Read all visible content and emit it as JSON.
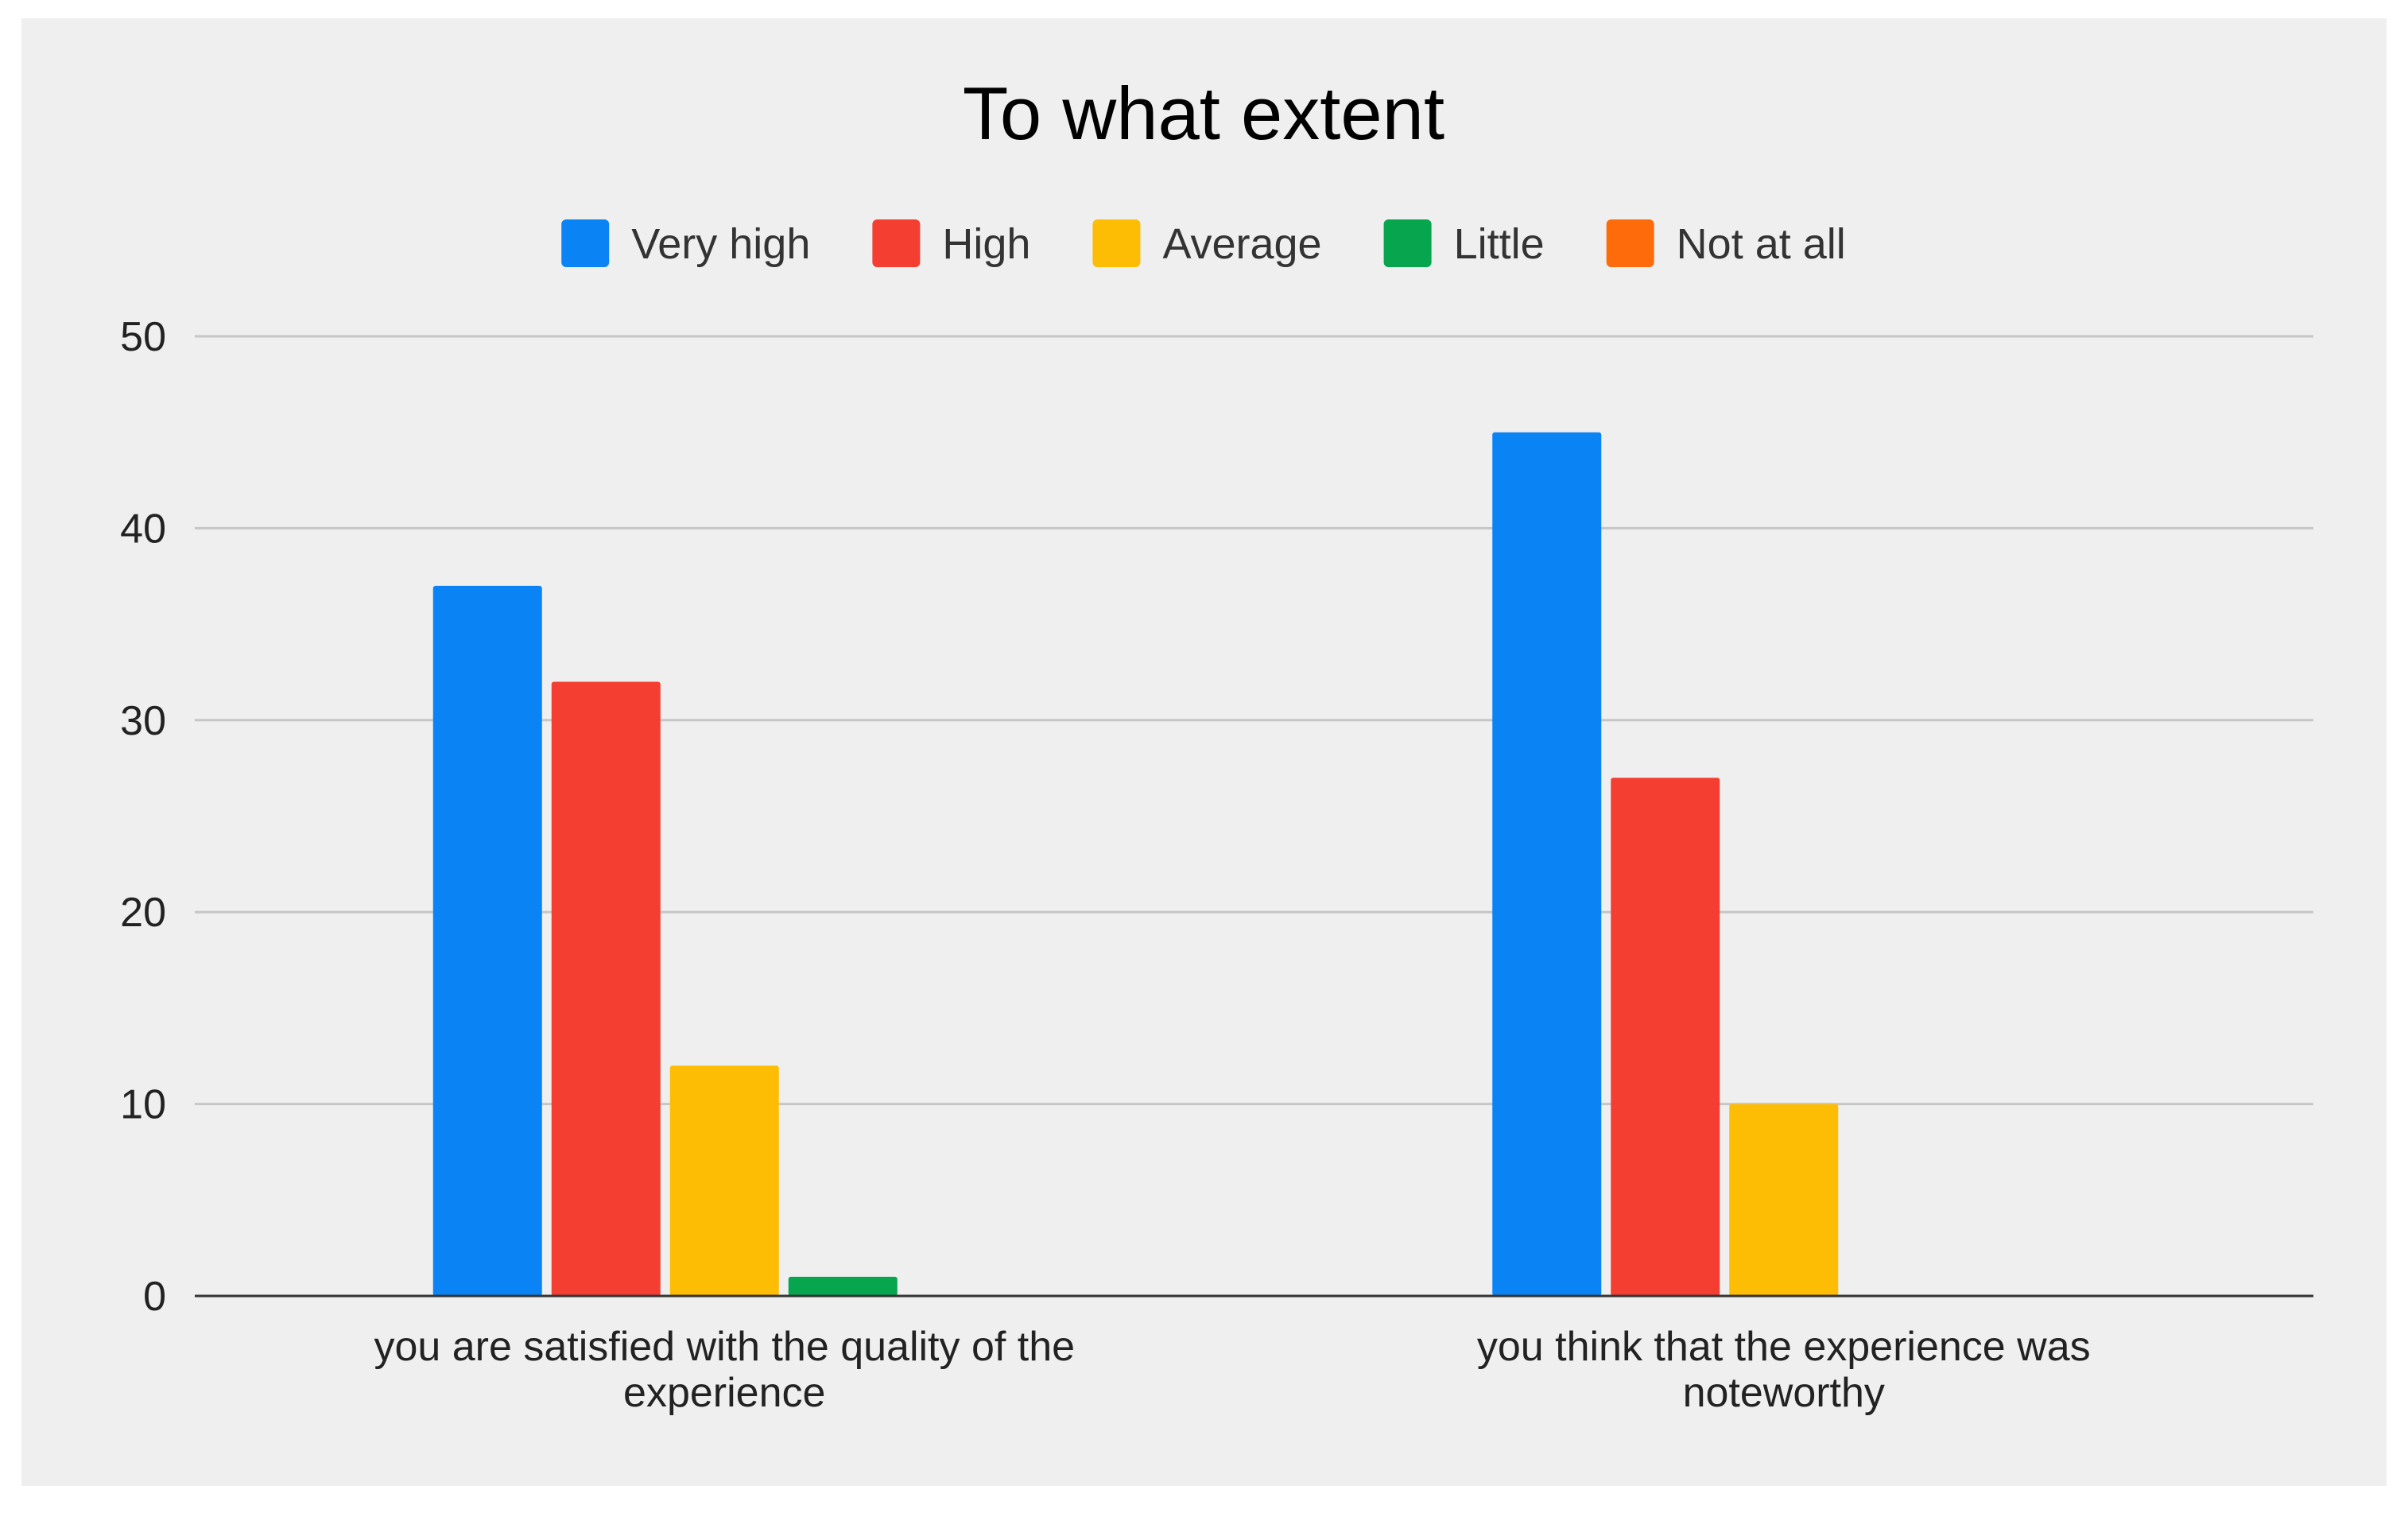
{
  "chart_data": {
    "type": "bar",
    "title": "To what extent",
    "categories": [
      [
        "you are satisfied with the quality of the",
        "experience"
      ],
      [
        "you think that the experience was",
        "noteworthy"
      ]
    ],
    "series": [
      {
        "name": "Very high",
        "color": "#0a84f5",
        "values": [
          37,
          45
        ]
      },
      {
        "name": "High",
        "color": "#f53e32",
        "values": [
          32,
          27
        ]
      },
      {
        "name": "Average",
        "color": "#fdbd04",
        "values": [
          12,
          10
        ]
      },
      {
        "name": "Little",
        "color": "#07a54d",
        "values": [
          1,
          0
        ]
      },
      {
        "name": "Not at all",
        "color": "#fd6b0a",
        "values": [
          0,
          0
        ]
      }
    ],
    "ylim": [
      0,
      50
    ],
    "yticks": [
      0,
      10,
      20,
      30,
      40,
      50
    ],
    "grid": true,
    "legend_position": "top",
    "xlabel": "",
    "ylabel": ""
  }
}
